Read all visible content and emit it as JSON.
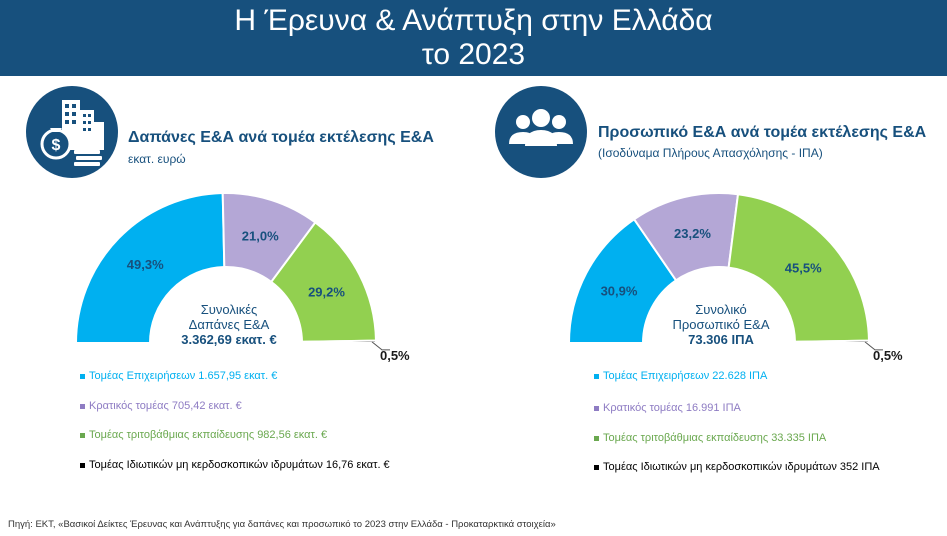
{
  "header": {
    "line1": "Η Έρευνα & Ανάπτυξη στην Ελλάδα",
    "line2": "το 2023"
  },
  "colors": {
    "banner": "#17507d",
    "business": "#00b0f0",
    "government": "#b4a7d6",
    "higher_education": "#92d050",
    "private_non_profit": "#1a1a1a"
  },
  "left_panel": {
    "icon": "money-city-icon",
    "title": "Δαπάνες Ε&Α ανά τομέα εκτέλεσης Ε&Α",
    "subtitle": "εκατ. ευρώ",
    "center": {
      "line1": "Συνολικές",
      "line2": "Δαπάνες Ε&Α",
      "value": "3.362,69 εκατ. €"
    },
    "legend": [
      {
        "label": "Τομέας Επιχειρήσεων 1.657,95 εκατ. €",
        "color": "#00b0f0"
      },
      {
        "label": "Κρατικός τομέας 705,42 εκατ. €",
        "color": "#8e7cc3"
      },
      {
        "label": "Τομέας τριτοβάθμιας εκπαίδευσης 982,56 εκατ. €",
        "color": "#6aa84f"
      },
      {
        "label": "Τομέας Ιδιωτικών μη κερδοσκοπικών ιδρυμάτων 16,76 εκατ. €",
        "color": "#000000"
      }
    ]
  },
  "right_panel": {
    "icon": "people-group-icon",
    "title": "Προσωπικό Ε&Α ανά τομέα εκτέλεσης Ε&Α",
    "subtitle": "(Ισοδύναμα Πλήρους Απασχόλησης - ΙΠΑ)",
    "center": {
      "line1": "Συνολικό",
      "line2": "Προσωπικό Ε&Α",
      "value": "73.306 ΙΠΑ"
    },
    "legend": [
      {
        "label": "Τομέας Επιχειρήσεων 22.628 ΙΠΑ",
        "color": "#00b0f0"
      },
      {
        "label": "Κρατικός τομέας 16.991 ΙΠΑ",
        "color": "#8e7cc3"
      },
      {
        "label": "Τομέας τριτοβάθμιας εκπαίδευσης 33.335 ΙΠΑ",
        "color": "#6aa84f"
      },
      {
        "label": "Τομέας Ιδιωτικών μη κερδοσκοπικών ιδρυμάτων 352 ΙΠΑ",
        "color": "#000000"
      }
    ]
  },
  "chart_data": [
    {
      "type": "pie",
      "title": "Δαπάνες Ε&Α ανά τομέα εκτέλεσης Ε&Α",
      "categories": [
        "Τομέας Επιχειρήσεων",
        "Κρατικός τομέας",
        "Τομέας τριτοβάθμιας εκπαίδευσης",
        "Τομέας Ιδιωτικών μη κερδοσκοπικών ιδρυμάτων"
      ],
      "values": [
        49.3,
        21.0,
        29.2,
        0.5
      ],
      "labels": [
        "49,3%",
        "21,0%",
        "29,2%",
        "0,5%"
      ],
      "colors": [
        "#00b0f0",
        "#b4a7d6",
        "#92d050",
        "#1a1a1a"
      ]
    },
    {
      "type": "pie",
      "title": "Προσωπικό Ε&Α ανά τομέα εκτέλεσης Ε&Α",
      "categories": [
        "Τομέας Επιχειρήσεων",
        "Κρατικός τομέας",
        "Τομέας τριτοβάθμιας εκπαίδευσης",
        "Τομέας Ιδιωτικών μη κερδοσκοπικών ιδρυμάτων"
      ],
      "values": [
        30.9,
        23.2,
        45.5,
        0.5
      ],
      "labels": [
        "30,9%",
        "23,2%",
        "45,5%",
        "0,5%"
      ],
      "colors": [
        "#00b0f0",
        "#b4a7d6",
        "#92d050",
        "#1a1a1a"
      ]
    }
  ],
  "source": "Πηγή: ΕΚΤ, «Βασικοί Δείκτες Έρευνας και Ανάπτυξης για δαπάνες και προσωπικό το 2023 στην Ελλάδα - Προκαταρκτικά στοιχεία»"
}
